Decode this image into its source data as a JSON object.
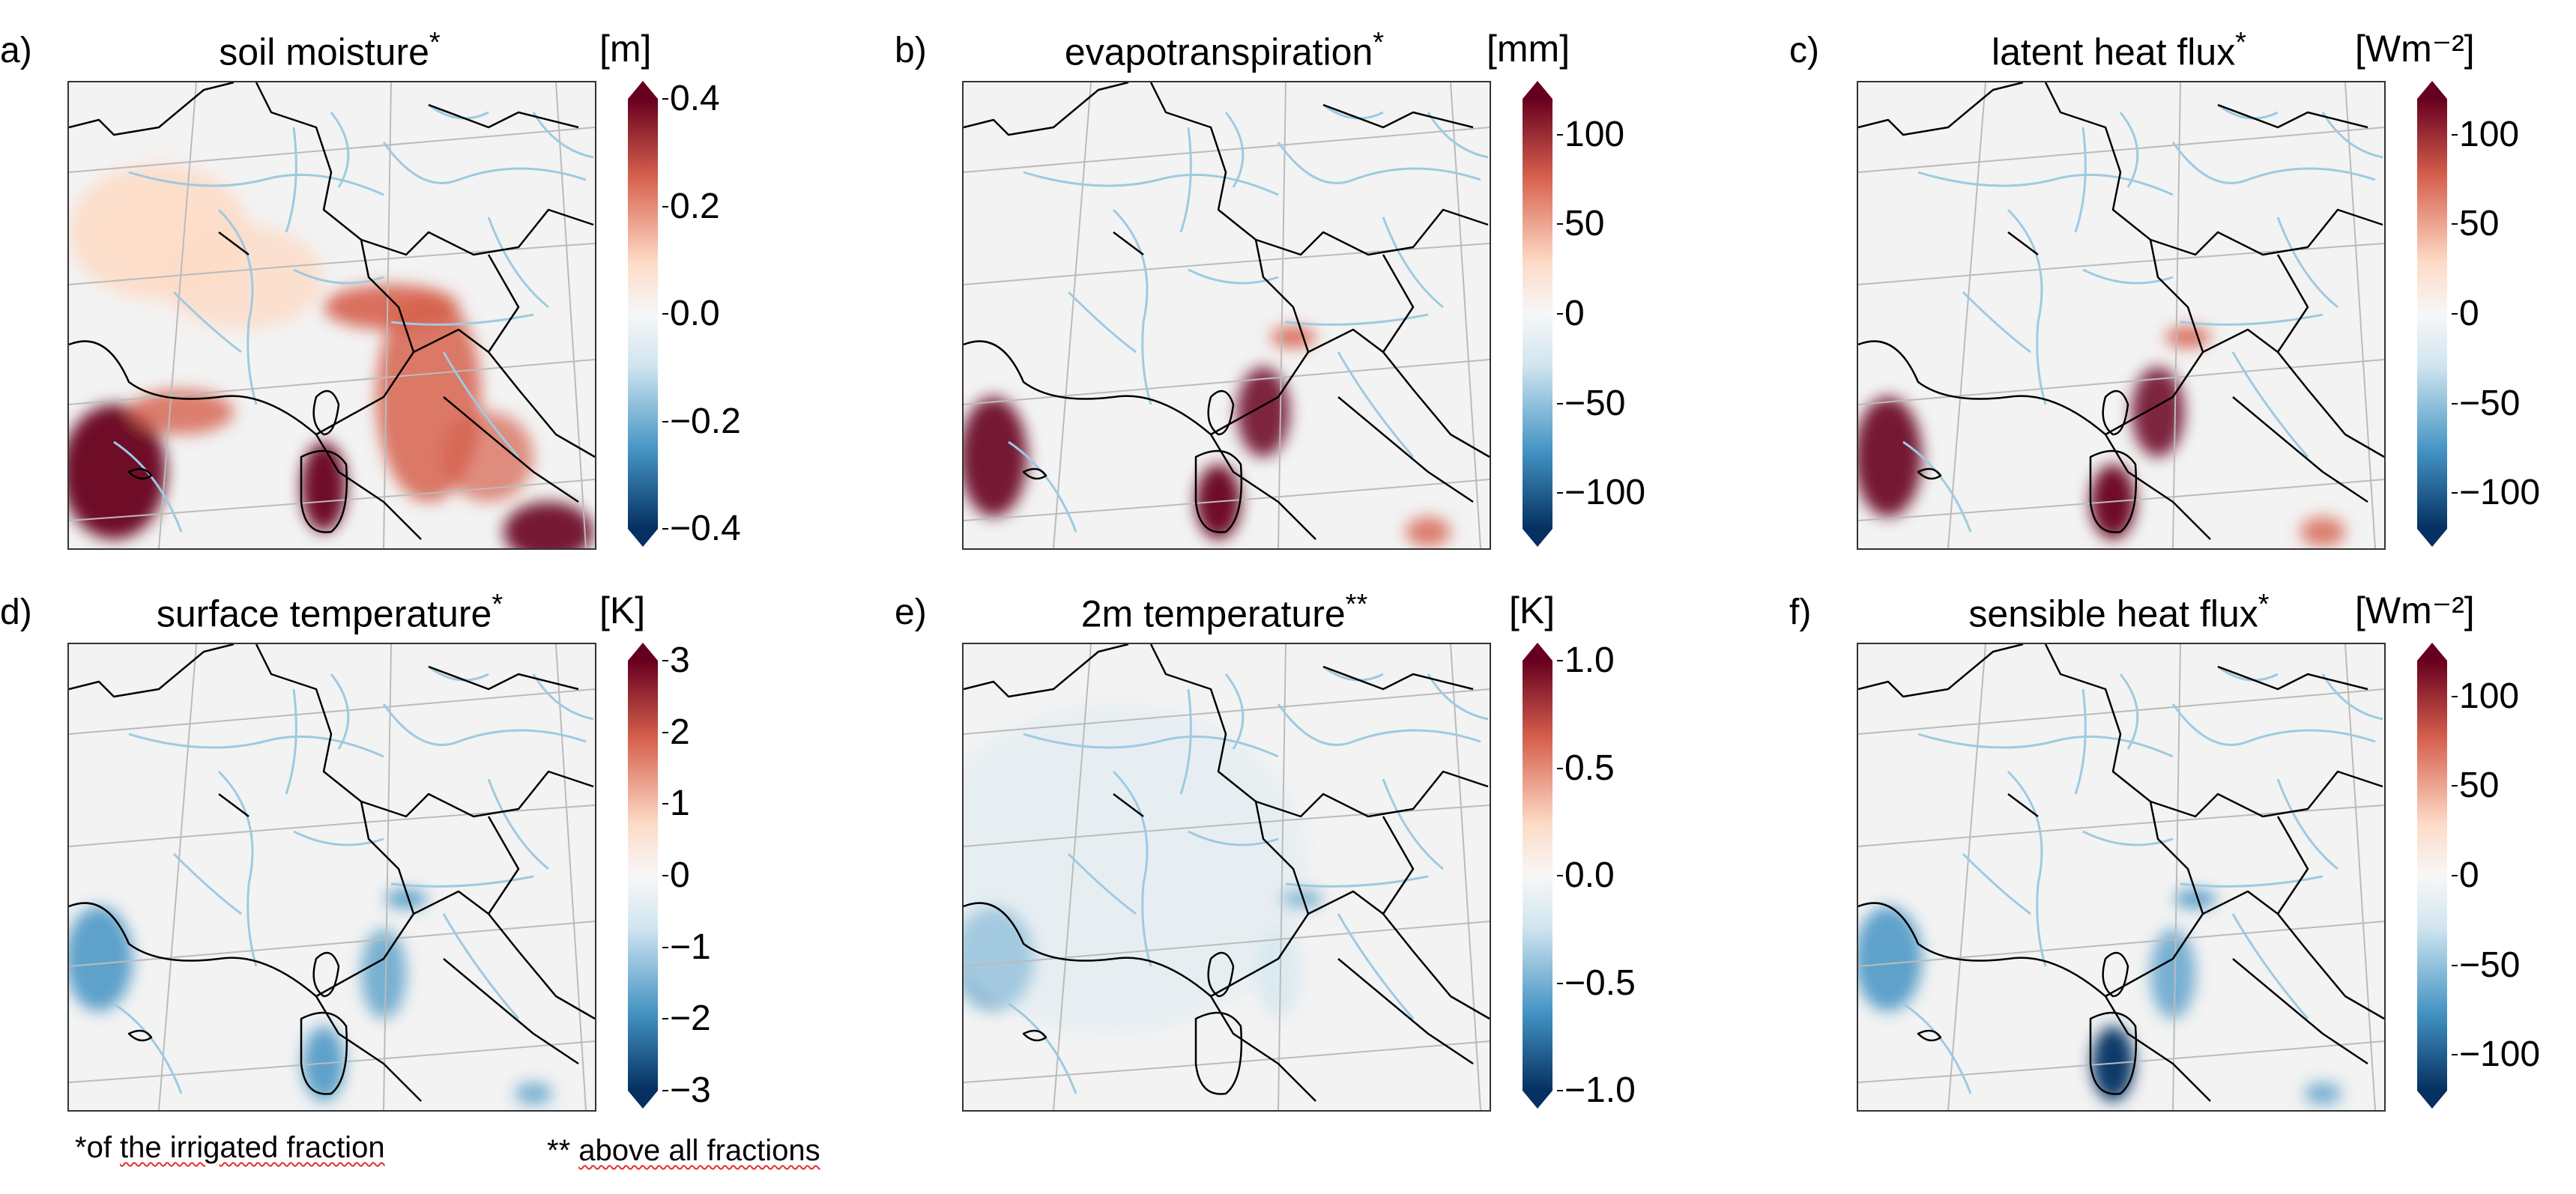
{
  "colors": {
    "pos_dark": "#67001f",
    "pos_mid": "#d6604d",
    "pos_light": "#fddbc7",
    "neutral": "#f7f7f7",
    "neg_light": "#d1e5f0",
    "neg_mid": "#4393c3",
    "neg_dark": "#053061",
    "river": "#9ecae1",
    "border": "#000000",
    "grid": "#bbbbbb"
  },
  "chart_data": [
    {
      "type": "heatmap",
      "letter": "a)",
      "title": "soil moisture",
      "mark": "*",
      "unit": "[m]",
      "colorbar": {
        "ticks": [
          "0.4",
          "0.2",
          "0.0",
          "−0.2",
          "−0.4"
        ],
        "range": [
          -0.4,
          0.4
        ],
        "extend": "both"
      }
    },
    {
      "type": "heatmap",
      "letter": "b)",
      "title": "evapotranspiration",
      "mark": "*",
      "unit": "[mm]",
      "colorbar": {
        "ticks": [
          "100",
          "50",
          "0",
          "−50",
          "−100"
        ],
        "range": [
          -120,
          120
        ],
        "extend": "both"
      }
    },
    {
      "type": "heatmap",
      "letter": "c)",
      "title": "latent heat flux",
      "mark": "*",
      "unit": "[Wm⁻²]",
      "colorbar": {
        "ticks": [
          "100",
          "50",
          "0",
          "−50",
          "−100"
        ],
        "range": [
          -120,
          120
        ],
        "extend": "both"
      }
    },
    {
      "type": "heatmap",
      "letter": "d)",
      "title": "surface temperature",
      "mark": "*",
      "unit": "[K]",
      "colorbar": {
        "ticks": [
          "3",
          "2",
          "1",
          "0",
          "−1",
          "−2",
          "−3"
        ],
        "range": [
          -3,
          3
        ],
        "extend": "both"
      }
    },
    {
      "type": "heatmap",
      "letter": "e)",
      "title": "2m temperature",
      "mark": "**",
      "unit": "[K]",
      "colorbar": {
        "ticks": [
          "1.0",
          "0.5",
          "0.0",
          "−0.5",
          "−1.0"
        ],
        "range": [
          -1,
          1
        ],
        "extend": "both"
      }
    },
    {
      "type": "heatmap",
      "letter": "f)",
      "title": "sensible heat flux",
      "mark": "*",
      "unit": "[Wm⁻²]",
      "colorbar": {
        "ticks": [
          "100",
          "50",
          "0",
          "−50",
          "−100"
        ],
        "range": [
          -120,
          120
        ],
        "extend": "both"
      }
    }
  ],
  "footnotes": {
    "single_prefix": "*of ",
    "single_underlined": "the irrigated fraction",
    "double_prefix": "** ",
    "double_underlined": "above all fractions"
  }
}
